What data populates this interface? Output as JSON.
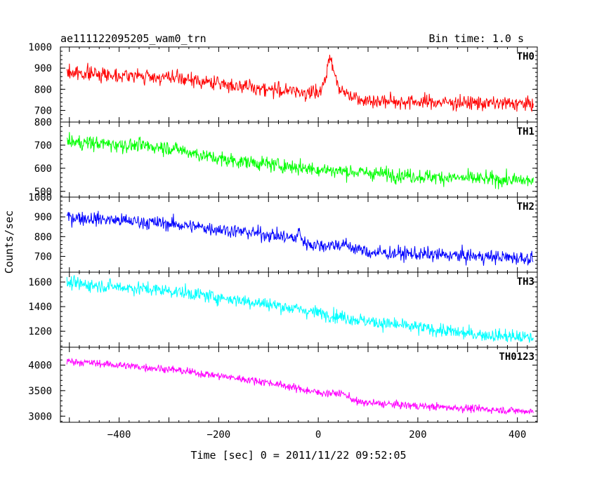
{
  "chart_data": {
    "type": "line",
    "title": "ae111122095205_wam0_trn",
    "bin_label": "Bin time: 1.0 s",
    "xlabel": "Time [sec] 0 = 2011/11/22 09:52:05",
    "ylabel": "Counts/sec",
    "xlim": [
      -518,
      440
    ],
    "data_x_range": [
      -505,
      432
    ],
    "x_ticks": [
      -400,
      -200,
      0,
      200,
      400
    ],
    "panels": [
      {
        "name": "TH0",
        "color": "#ff0000",
        "ylim": [
          645,
          1000
        ],
        "y_ticks": [
          700,
          800,
          900,
          1000
        ],
        "trend": [
          [
            -505,
            880
          ],
          [
            -300,
            855
          ],
          [
            -120,
            805
          ],
          [
            0,
            780
          ],
          [
            15,
            840
          ],
          [
            20,
            935
          ],
          [
            25,
            960
          ],
          [
            32,
            880
          ],
          [
            45,
            790
          ],
          [
            100,
            745
          ],
          [
            432,
            730
          ]
        ],
        "noise": 44
      },
      {
        "name": "TH1",
        "color": "#00ff00",
        "ylim": [
          475,
          800
        ],
        "y_ticks": [
          500,
          600,
          700,
          800
        ],
        "trend": [
          [
            -505,
            715
          ],
          [
            -300,
            690
          ],
          [
            -200,
            640
          ],
          [
            0,
            595
          ],
          [
            200,
            565
          ],
          [
            432,
            545
          ]
        ],
        "noise": 40
      },
      {
        "name": "TH2",
        "color": "#0000ff",
        "ylim": [
          620,
          1000
        ],
        "y_ticks": [
          700,
          800,
          900,
          1000
        ],
        "trend": [
          [
            -505,
            900
          ],
          [
            -300,
            865
          ],
          [
            -100,
            810
          ],
          [
            -45,
            790
          ],
          [
            -38,
            830
          ],
          [
            -30,
            770
          ],
          [
            0,
            755
          ],
          [
            50,
            760
          ],
          [
            100,
            720
          ],
          [
            432,
            690
          ]
        ],
        "noise": 45
      },
      {
        "name": "TH3",
        "color": "#00ffff",
        "ylim": [
          1070,
          1680
        ],
        "y_ticks": [
          1200,
          1400,
          1600
        ],
        "trend": [
          [
            -505,
            1590
          ],
          [
            -300,
            1530
          ],
          [
            -100,
            1420
          ],
          [
            100,
            1280
          ],
          [
            300,
            1180
          ],
          [
            432,
            1145
          ]
        ],
        "noise": 70
      },
      {
        "name": "TH0123",
        "color": "#ff00ff",
        "ylim": [
          2880,
          4350
        ],
        "y_ticks": [
          3000,
          3500,
          4000
        ],
        "trend": [
          [
            -505,
            4080
          ],
          [
            -300,
            3920
          ],
          [
            -100,
            3660
          ],
          [
            0,
            3460
          ],
          [
            50,
            3440
          ],
          [
            80,
            3270
          ],
          [
            200,
            3200
          ],
          [
            432,
            3090
          ]
        ],
        "noise": 95
      }
    ]
  }
}
